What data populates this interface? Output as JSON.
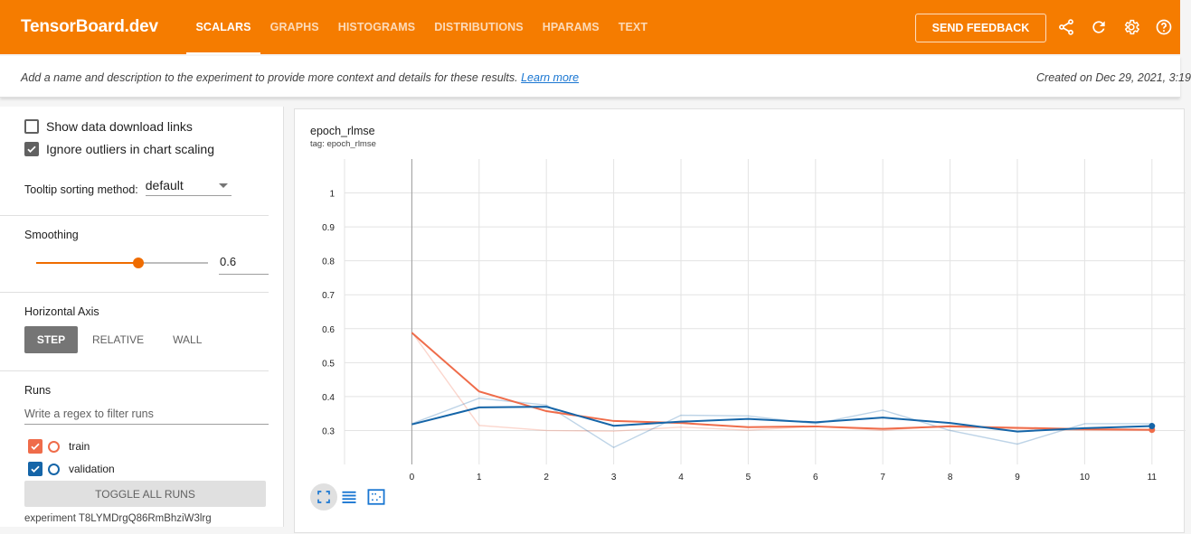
{
  "header": {
    "brand": "TensorBoard.dev",
    "tabs": [
      {
        "label": "SCALARS",
        "active": true
      },
      {
        "label": "GRAPHS",
        "active": false
      },
      {
        "label": "HISTOGRAMS",
        "active": false
      },
      {
        "label": "DISTRIBUTIONS",
        "active": false
      },
      {
        "label": "HPARAMS",
        "active": false
      },
      {
        "label": "TEXT",
        "active": false
      }
    ],
    "feedback_label": "SEND FEEDBACK",
    "icons": [
      "share-icon",
      "refresh-icon",
      "settings-icon",
      "help-icon"
    ],
    "color": "#f57c00"
  },
  "description": {
    "text": "Add a name and description to the experiment to provide more context and details for these results.",
    "link": "Learn more",
    "created": "Created on Dec 29, 2021, 3:19"
  },
  "sidebar": {
    "show_download_label": "Show data download links",
    "show_download_checked": false,
    "ignore_outliers_label": "Ignore outliers in chart scaling",
    "ignore_outliers_checked": true,
    "tooltip_label": "Tooltip sorting method:",
    "tooltip_value": "default",
    "smoothing_title": "Smoothing",
    "smoothing_value": "0.6",
    "haxis_title": "Horizontal Axis",
    "haxis_options": [
      "STEP",
      "RELATIVE",
      "WALL"
    ],
    "haxis_active": "STEP",
    "runs_title": "Runs",
    "runs_filter_placeholder": "Write a regex to filter runs",
    "runs": [
      {
        "name": "train",
        "color": "#ef6c4a",
        "checked": true
      },
      {
        "name": "validation",
        "color": "#1565a8",
        "checked": true
      }
    ],
    "toggle_all_label": "TOGGLE ALL RUNS",
    "experiment_id": "experiment T8LYMDrgQ86RmBhziW3lrg"
  },
  "chart_data": {
    "type": "line",
    "title": "epoch_rlmse",
    "tag": "tag: epoch_rlmse",
    "xlabel": "",
    "ylabel": "",
    "x": [
      0,
      1,
      2,
      3,
      4,
      5,
      6,
      7,
      8,
      9,
      10,
      11
    ],
    "xlim": [
      -1,
      11.5
    ],
    "ylim": [
      0.2,
      1.1
    ],
    "y_ticks": [
      0.3,
      0.4,
      0.5,
      0.6,
      0.7,
      0.8,
      0.9,
      1
    ],
    "y_tick_labels": [
      "0.3",
      "0.4",
      "0.5",
      "0.6",
      "0.7",
      "0.8",
      "0.9",
      "1"
    ],
    "x_tick_labels": [
      "0",
      "1",
      "2",
      "3",
      "4",
      "5",
      "6",
      "7",
      "8",
      "9",
      "10",
      "11"
    ],
    "series": [
      {
        "name": "train (raw)",
        "color": "#ef6c4a",
        "raw": true,
        "values": [
          0.59,
          0.315,
          0.3,
          0.298,
          0.31,
          0.301,
          0.312,
          0.3,
          0.315,
          0.305,
          0.3,
          0.3
        ]
      },
      {
        "name": "validation (raw)",
        "color": "#1565a8",
        "raw": true,
        "values": [
          0.32,
          0.395,
          0.375,
          0.25,
          0.345,
          0.343,
          0.32,
          0.36,
          0.3,
          0.26,
          0.32,
          0.32
        ]
      },
      {
        "name": "train",
        "color": "#ef6c4a",
        "raw": false,
        "values": [
          0.588,
          0.415,
          0.357,
          0.328,
          0.322,
          0.31,
          0.312,
          0.305,
          0.312,
          0.308,
          0.304,
          0.302
        ]
      },
      {
        "name": "validation",
        "color": "#1565a8",
        "raw": false,
        "values": [
          0.318,
          0.368,
          0.37,
          0.314,
          0.326,
          0.334,
          0.324,
          0.338,
          0.322,
          0.297,
          0.307,
          0.313
        ]
      }
    ]
  }
}
